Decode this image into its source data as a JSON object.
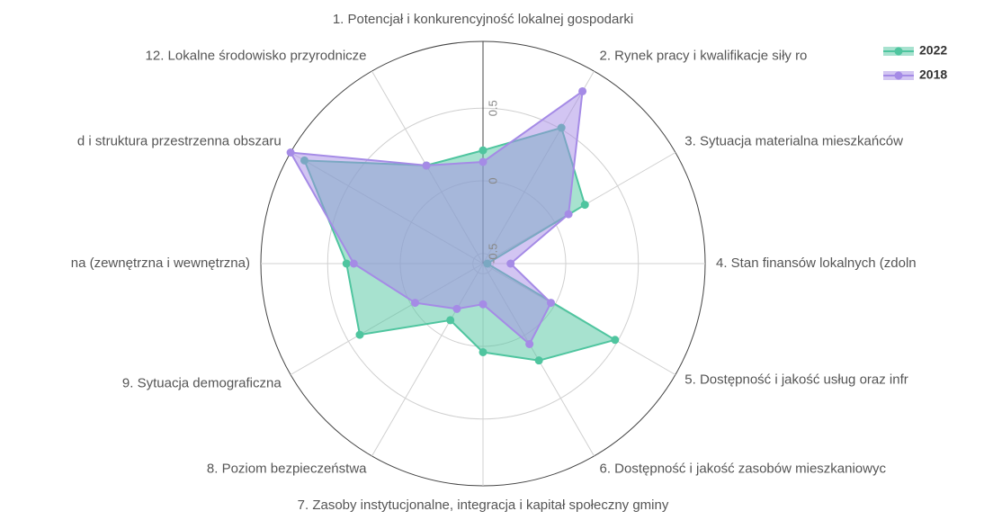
{
  "chart_data": {
    "type": "radar",
    "categories": [
      "1. Potencjał i konkurencyjność lokalnej gospodarki",
      "2. Rynek pracy i kwalifikacje siły ro",
      "3. Sytuacja materialna mieszkańców",
      "4. Stan finansów lokalnych  (zdoln",
      "5. Dostępność i jakość usług oraz infr",
      "6. Dostępność i jakość zasobów mieszkaniowyc",
      "7. Zasoby instytucjonalne, integracja i kapitał społeczny gminy",
      "8. Poziom bezpieczeństwa",
      "9. Sytuacja demograficzna",
      "na (zewnętrzna i wewnętrzna)",
      "d i struktura przestrzenna obszaru",
      "12. Lokalne środowisko przyrodnicze"
    ],
    "series": [
      {
        "name": "2022",
        "color": "#4fc59f",
        "values": [
          0.21,
          0.51,
          0.24,
          -0.54,
          0.48,
          0.2,
          0.04,
          -0.12,
          0.41,
          0.37,
          0.85,
          0.21
        ]
      },
      {
        "name": "2018",
        "color": "#a58be6",
        "values": [
          0.13,
          0.8,
          0.11,
          -0.38,
          -0.03,
          0.07,
          -0.29,
          -0.21,
          -0.03,
          0.32,
          0.96,
          0.21
        ]
      }
    ],
    "rlim": [
      -0.57,
      0.96
    ],
    "rticks": [
      -0.5,
      0,
      0.5
    ],
    "grid": true,
    "legend": "top-right"
  }
}
